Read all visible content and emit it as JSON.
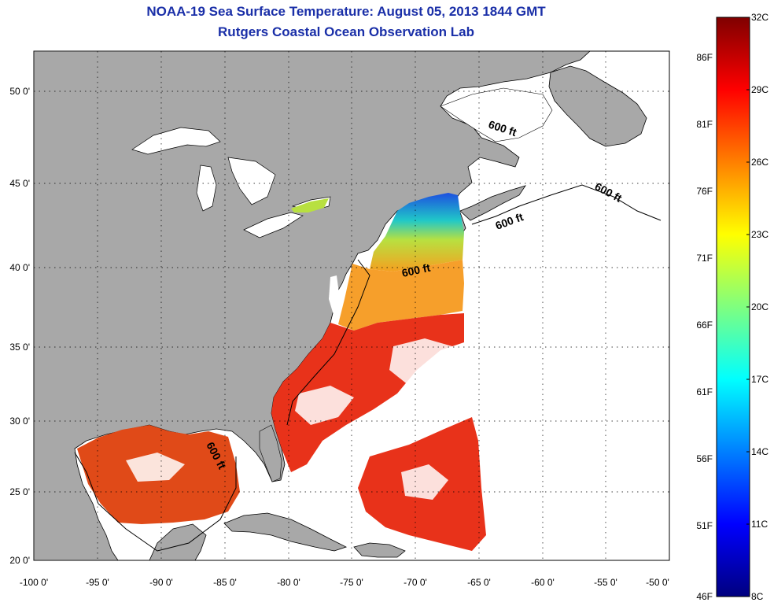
{
  "title": "NOAA-19 Sea Surface Temperature:  August 05, 2013 1844 GMT",
  "subtitle": "Rutgers Coastal Ocean Observation Lab",
  "lon_ticks": [
    "-100 0'",
    "-95 0'",
    "-90 0'",
    "-85 0'",
    "-80 0'",
    "-75 0'",
    "-70 0'",
    "-65 0'",
    "-60 0'",
    "-55 0'",
    "-50 0'"
  ],
  "lat_ticks": [
    "50 0'",
    "45 0'",
    "40 0'",
    "35 0'",
    "30 0'",
    "25 0'",
    "20 0'"
  ],
  "depth_label": "600 ft",
  "colorbar": {
    "celsius": [
      "32C",
      "29C",
      "26C",
      "23C",
      "20C",
      "17C",
      "14C",
      "11C",
      "8C"
    ],
    "fahrenheit": [
      "86F",
      "81F",
      "76F",
      "71F",
      "66F",
      "61F",
      "56F",
      "51F",
      "46F"
    ],
    "range_c": [
      8,
      32
    ],
    "colors": [
      "#00007f",
      "#0000ff",
      "#007fff",
      "#00ffff",
      "#7fff7f",
      "#ffff00",
      "#ff7f00",
      "#ff0000",
      "#7f0000"
    ]
  },
  "colors": {
    "land": "#a8a8a8",
    "water": "#ffffff",
    "title": "#1a2fa8"
  }
}
